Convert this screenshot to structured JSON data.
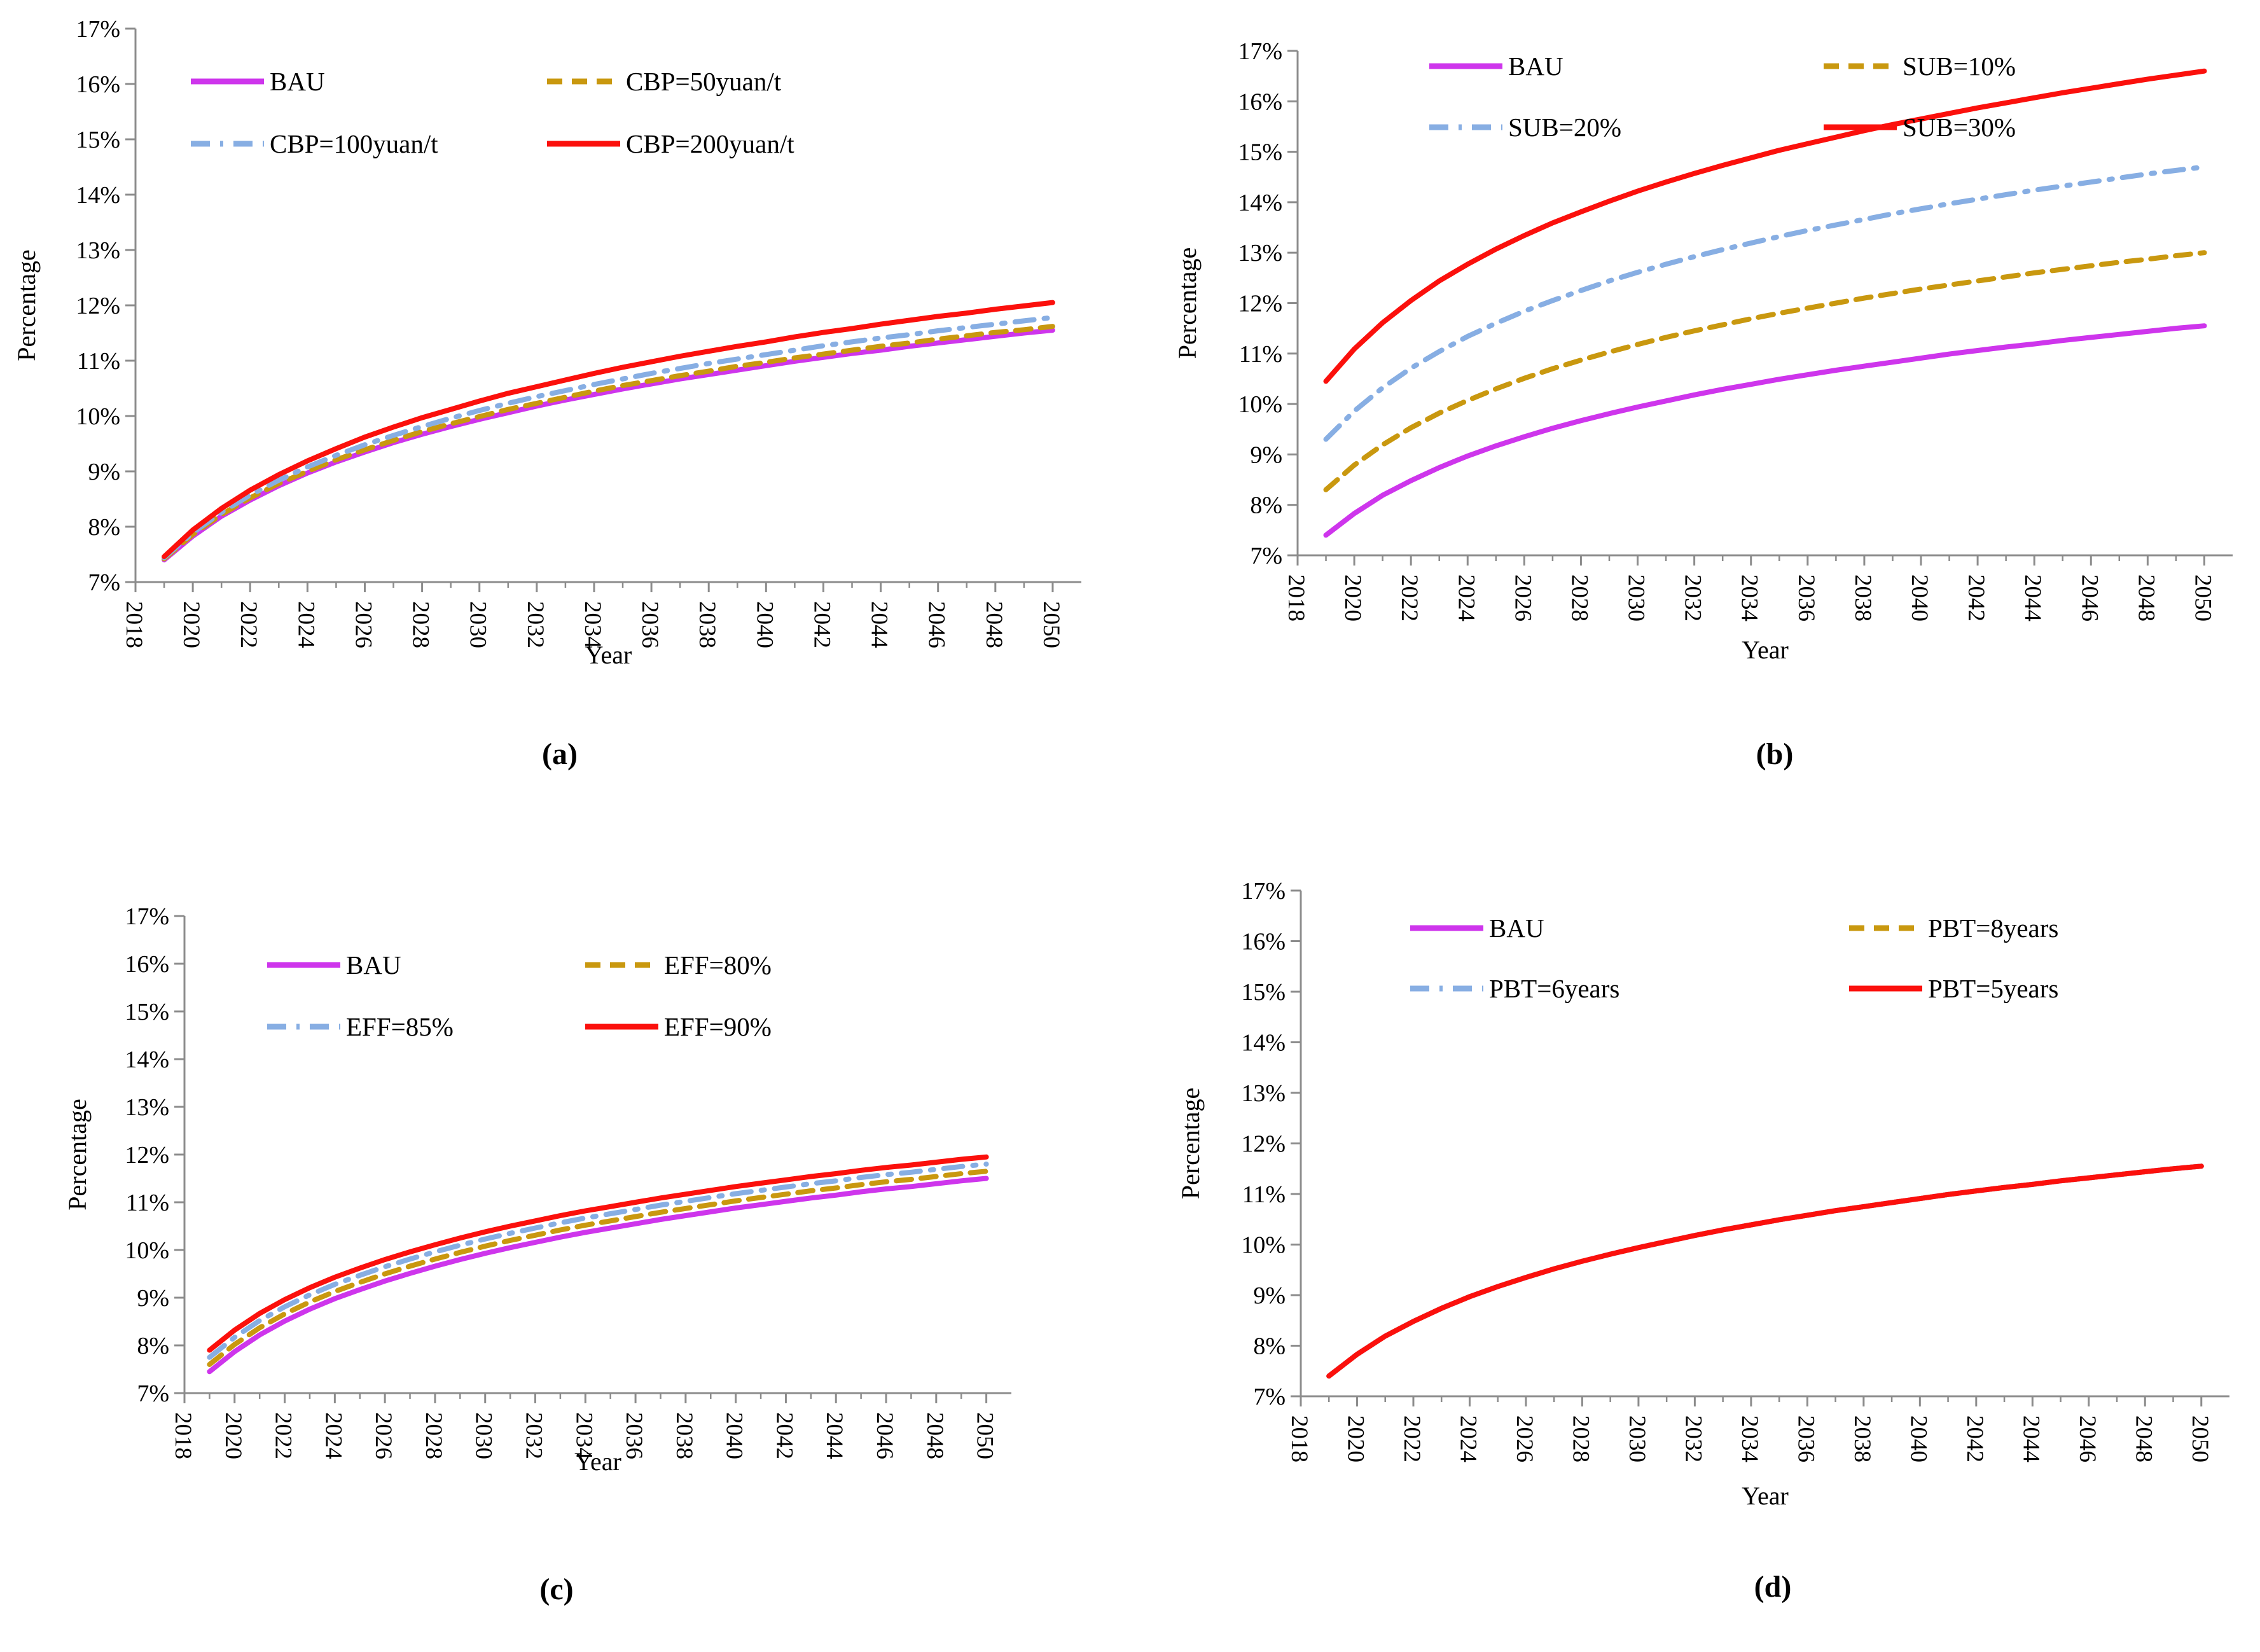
{
  "figure": {
    "background": "#ffffff",
    "axis_color": "#8c8c8c",
    "text_color": "#000000",
    "accent_colors": {
      "bau_magenta": "#CE35EC",
      "dark_yellow": "#C9980F",
      "light_blue": "#87AEE3",
      "red": "#FB100C"
    }
  },
  "chart_data": [
    {
      "type": "line",
      "panel_label": "(a)",
      "xlabel": "Year",
      "ylabel": "Percentage",
      "x_range": [
        2018,
        2051
      ],
      "ylim": [
        7,
        17
      ],
      "y_ticks": [
        "7%",
        "8%",
        "9%",
        "10%",
        "11%",
        "12%",
        "13%",
        "14%",
        "15%",
        "16%",
        "17%"
      ],
      "x_ticks": [
        2018,
        2020,
        2022,
        2024,
        2026,
        2028,
        2030,
        2032,
        2034,
        2036,
        2038,
        2040,
        2042,
        2044,
        2046,
        2048,
        2050
      ],
      "grid": false,
      "legend_position": "top-left-inside",
      "years": [
        2019,
        2020,
        2021,
        2022,
        2023,
        2024,
        2025,
        2026,
        2027,
        2028,
        2029,
        2030,
        2031,
        2032,
        2033,
        2034,
        2035,
        2036,
        2037,
        2038,
        2039,
        2040,
        2041,
        2042,
        2043,
        2044,
        2045,
        2046,
        2047,
        2048,
        2049,
        2050
      ],
      "series": [
        {
          "name": "BAU",
          "color": "#CE35EC",
          "dash": "solid",
          "values": [
            7.4,
            7.83,
            8.19,
            8.48,
            8.74,
            8.97,
            9.17,
            9.35,
            9.52,
            9.67,
            9.81,
            9.94,
            10.06,
            10.18,
            10.29,
            10.39,
            10.49,
            10.58,
            10.67,
            10.75,
            10.83,
            10.91,
            10.99,
            11.06,
            11.13,
            11.19,
            11.26,
            11.32,
            11.38,
            11.44,
            11.5,
            11.55
          ]
        },
        {
          "name": "CBP=50yuan/t",
          "color": "#C9980F",
          "dash": "dashed",
          "values": [
            7.42,
            7.86,
            8.22,
            8.52,
            8.78,
            9.0,
            9.21,
            9.39,
            9.56,
            9.72,
            9.86,
            9.99,
            10.12,
            10.23,
            10.34,
            10.45,
            10.55,
            10.64,
            10.73,
            10.81,
            10.9,
            10.97,
            11.05,
            11.12,
            11.19,
            11.26,
            11.32,
            11.39,
            11.45,
            11.51,
            11.56,
            11.62
          ]
        },
        {
          "name": "CBP=100yuan/t",
          "color": "#87AEE3",
          "dash": "dashdot",
          "values": [
            7.44,
            7.89,
            8.26,
            8.57,
            8.84,
            9.08,
            9.29,
            9.48,
            9.65,
            9.81,
            9.96,
            10.1,
            10.23,
            10.35,
            10.46,
            10.57,
            10.67,
            10.77,
            10.86,
            10.95,
            11.03,
            11.11,
            11.19,
            11.27,
            11.34,
            11.41,
            11.47,
            11.54,
            11.6,
            11.66,
            11.72,
            11.78
          ]
        },
        {
          "name": "CBP=200yuan/t",
          "color": "#FB100C",
          "dash": "solid",
          "values": [
            7.46,
            7.94,
            8.33,
            8.66,
            8.94,
            9.19,
            9.41,
            9.62,
            9.8,
            9.97,
            10.12,
            10.27,
            10.41,
            10.53,
            10.65,
            10.77,
            10.88,
            10.98,
            11.08,
            11.17,
            11.26,
            11.34,
            11.43,
            11.51,
            11.58,
            11.66,
            11.73,
            11.8,
            11.86,
            11.93,
            11.99,
            12.05
          ]
        }
      ]
    },
    {
      "type": "line",
      "panel_label": "(b)",
      "xlabel": "Year",
      "ylabel": "Percentage",
      "x_range": [
        2018,
        2051
      ],
      "ylim": [
        7,
        17
      ],
      "y_ticks": [
        "7%",
        "8%",
        "9%",
        "10%",
        "11%",
        "12%",
        "13%",
        "14%",
        "15%",
        "16%",
        "17%"
      ],
      "x_ticks": [
        2018,
        2020,
        2022,
        2024,
        2026,
        2028,
        2030,
        2032,
        2034,
        2036,
        2038,
        2040,
        2042,
        2044,
        2046,
        2048,
        2050
      ],
      "grid": false,
      "legend_position": "top-left-inside",
      "years": [
        2019,
        2020,
        2021,
        2022,
        2023,
        2024,
        2025,
        2026,
        2027,
        2028,
        2029,
        2030,
        2031,
        2032,
        2033,
        2034,
        2035,
        2036,
        2037,
        2038,
        2039,
        2040,
        2041,
        2042,
        2043,
        2044,
        2045,
        2046,
        2047,
        2048,
        2049,
        2050
      ],
      "series": [
        {
          "name": "BAU",
          "color": "#CE35EC",
          "dash": "solid",
          "values": [
            7.4,
            7.83,
            8.19,
            8.48,
            8.74,
            8.97,
            9.17,
            9.35,
            9.52,
            9.67,
            9.81,
            9.94,
            10.06,
            10.18,
            10.29,
            10.39,
            10.49,
            10.58,
            10.67,
            10.75,
            10.83,
            10.91,
            10.99,
            11.06,
            11.13,
            11.19,
            11.26,
            11.32,
            11.38,
            11.44,
            11.5,
            11.55
          ]
        },
        {
          "name": "SUB=10%",
          "color": "#C9980F",
          "dash": "dashed",
          "values": [
            8.3,
            8.79,
            9.19,
            9.53,
            9.82,
            10.07,
            10.3,
            10.51,
            10.7,
            10.87,
            11.03,
            11.18,
            11.32,
            11.45,
            11.57,
            11.69,
            11.8,
            11.9,
            12.0,
            12.1,
            12.19,
            12.28,
            12.36,
            12.44,
            12.52,
            12.6,
            12.67,
            12.74,
            12.81,
            12.87,
            12.94,
            13.0
          ]
        },
        {
          "name": "SUB=20%",
          "color": "#87AEE3",
          "dash": "dashdot",
          "values": [
            9.3,
            9.86,
            10.32,
            10.71,
            11.04,
            11.34,
            11.6,
            11.84,
            12.05,
            12.25,
            12.44,
            12.61,
            12.77,
            12.92,
            13.06,
            13.19,
            13.32,
            13.44,
            13.55,
            13.66,
            13.77,
            13.87,
            13.97,
            14.06,
            14.15,
            14.24,
            14.32,
            14.4,
            14.48,
            14.56,
            14.63,
            14.7
          ]
        },
        {
          "name": "SUB=30%",
          "color": "#FB100C",
          "dash": "solid",
          "values": [
            10.45,
            11.09,
            11.61,
            12.05,
            12.44,
            12.77,
            13.07,
            13.34,
            13.59,
            13.81,
            14.02,
            14.22,
            14.4,
            14.57,
            14.73,
            14.88,
            15.03,
            15.16,
            15.29,
            15.42,
            15.54,
            15.65,
            15.76,
            15.87,
            15.97,
            16.07,
            16.17,
            16.26,
            16.35,
            16.44,
            16.52,
            16.6
          ]
        }
      ]
    },
    {
      "type": "line",
      "panel_label": "(c)",
      "xlabel": "Year",
      "ylabel": "Percentage",
      "x_range": [
        2018,
        2051
      ],
      "ylim": [
        7,
        17
      ],
      "y_ticks": [
        "7%",
        "8%",
        "9%",
        "10%",
        "11%",
        "12%",
        "13%",
        "14%",
        "15%",
        "16%",
        "17%"
      ],
      "x_ticks": [
        2018,
        2020,
        2022,
        2024,
        2026,
        2028,
        2030,
        2032,
        2034,
        2036,
        2038,
        2040,
        2042,
        2044,
        2046,
        2048,
        2050
      ],
      "grid": false,
      "legend_position": "top-left-inside",
      "years": [
        2019,
        2020,
        2021,
        2022,
        2023,
        2024,
        2025,
        2026,
        2027,
        2028,
        2029,
        2030,
        2031,
        2032,
        2033,
        2034,
        2035,
        2036,
        2037,
        2038,
        2039,
        2040,
        2041,
        2042,
        2043,
        2044,
        2045,
        2046,
        2047,
        2048,
        2049,
        2050
      ],
      "series": [
        {
          "name": "BAU",
          "color": "#CE35EC",
          "dash": "solid",
          "values": [
            7.45,
            7.87,
            8.22,
            8.51,
            8.76,
            8.98,
            9.17,
            9.35,
            9.51,
            9.66,
            9.8,
            9.93,
            10.05,
            10.16,
            10.27,
            10.37,
            10.46,
            10.55,
            10.64,
            10.72,
            10.8,
            10.88,
            10.95,
            11.02,
            11.09,
            11.15,
            11.22,
            11.28,
            11.33,
            11.39,
            11.45,
            11.5
          ]
        },
        {
          "name": "EFF=80%",
          "color": "#C9980F",
          "dash": "dashed",
          "values": [
            7.6,
            8.02,
            8.37,
            8.66,
            8.91,
            9.13,
            9.32,
            9.5,
            9.66,
            9.81,
            9.95,
            10.08,
            10.2,
            10.31,
            10.42,
            10.52,
            10.61,
            10.7,
            10.79,
            10.87,
            10.95,
            11.03,
            11.1,
            11.17,
            11.24,
            11.3,
            11.37,
            11.43,
            11.48,
            11.54,
            11.6,
            11.65
          ]
        },
        {
          "name": "EFF=85%",
          "color": "#87AEE3",
          "dash": "dashdot",
          "values": [
            7.75,
            8.17,
            8.52,
            8.81,
            9.06,
            9.28,
            9.47,
            9.65,
            9.81,
            9.96,
            10.1,
            10.23,
            10.35,
            10.46,
            10.57,
            10.67,
            10.76,
            10.85,
            10.94,
            11.02,
            11.1,
            11.18,
            11.25,
            11.32,
            11.39,
            11.45,
            11.52,
            11.58,
            11.63,
            11.69,
            11.75,
            11.8
          ]
        },
        {
          "name": "EFF=90%",
          "color": "#FB100C",
          "dash": "solid",
          "values": [
            7.9,
            8.32,
            8.67,
            8.96,
            9.21,
            9.43,
            9.62,
            9.8,
            9.96,
            10.11,
            10.25,
            10.38,
            10.5,
            10.61,
            10.72,
            10.82,
            10.91,
            11.0,
            11.09,
            11.17,
            11.25,
            11.33,
            11.4,
            11.47,
            11.54,
            11.6,
            11.67,
            11.73,
            11.78,
            11.84,
            11.9,
            11.95
          ]
        }
      ]
    },
    {
      "type": "line",
      "panel_label": "(d)",
      "xlabel": "Year",
      "ylabel": "Percentage",
      "x_range": [
        2018,
        2051
      ],
      "ylim": [
        7,
        17
      ],
      "y_ticks": [
        "7%",
        "8%",
        "9%",
        "10%",
        "11%",
        "12%",
        "13%",
        "14%",
        "15%",
        "16%",
        "17%"
      ],
      "x_ticks": [
        2018,
        2020,
        2022,
        2024,
        2026,
        2028,
        2030,
        2032,
        2034,
        2036,
        2038,
        2040,
        2042,
        2044,
        2046,
        2048,
        2050
      ],
      "grid": false,
      "legend_position": "top-left-inside",
      "years": [
        2019,
        2020,
        2021,
        2022,
        2023,
        2024,
        2025,
        2026,
        2027,
        2028,
        2029,
        2030,
        2031,
        2032,
        2033,
        2034,
        2035,
        2036,
        2037,
        2038,
        2039,
        2040,
        2041,
        2042,
        2043,
        2044,
        2045,
        2046,
        2047,
        2048,
        2049,
        2050
      ],
      "series": [
        {
          "name": "BAU",
          "color": "#CE35EC",
          "dash": "solid",
          "values": [
            7.4,
            7.83,
            8.19,
            8.48,
            8.74,
            8.97,
            9.17,
            9.35,
            9.52,
            9.67,
            9.81,
            9.94,
            10.06,
            10.18,
            10.29,
            10.39,
            10.49,
            10.58,
            10.67,
            10.75,
            10.83,
            10.91,
            10.99,
            11.06,
            11.13,
            11.19,
            11.26,
            11.32,
            11.38,
            11.44,
            11.5,
            11.55
          ]
        },
        {
          "name": "PBT=8years",
          "color": "#C9980F",
          "dash": "dashed",
          "values": [
            7.4,
            7.83,
            8.19,
            8.48,
            8.74,
            8.97,
            9.17,
            9.35,
            9.52,
            9.67,
            9.81,
            9.94,
            10.06,
            10.18,
            10.29,
            10.39,
            10.49,
            10.58,
            10.67,
            10.75,
            10.83,
            10.91,
            10.99,
            11.06,
            11.13,
            11.19,
            11.26,
            11.32,
            11.38,
            11.44,
            11.5,
            11.55
          ]
        },
        {
          "name": "PBT=6years",
          "color": "#87AEE3",
          "dash": "dashdot",
          "values": [
            7.4,
            7.83,
            8.19,
            8.48,
            8.74,
            8.97,
            9.17,
            9.35,
            9.52,
            9.67,
            9.81,
            9.94,
            10.06,
            10.18,
            10.29,
            10.39,
            10.49,
            10.58,
            10.67,
            10.75,
            10.83,
            10.91,
            10.99,
            11.06,
            11.13,
            11.19,
            11.26,
            11.32,
            11.38,
            11.44,
            11.5,
            11.55
          ]
        },
        {
          "name": "PBT=5years",
          "color": "#FB100C",
          "dash": "solid",
          "values": [
            7.4,
            7.83,
            8.19,
            8.48,
            8.74,
            8.97,
            9.17,
            9.35,
            9.52,
            9.67,
            9.81,
            9.94,
            10.06,
            10.18,
            10.29,
            10.39,
            10.49,
            10.58,
            10.67,
            10.75,
            10.83,
            10.91,
            10.99,
            11.06,
            11.13,
            11.19,
            11.26,
            11.32,
            11.38,
            11.44,
            11.5,
            11.55
          ]
        }
      ]
    }
  ]
}
